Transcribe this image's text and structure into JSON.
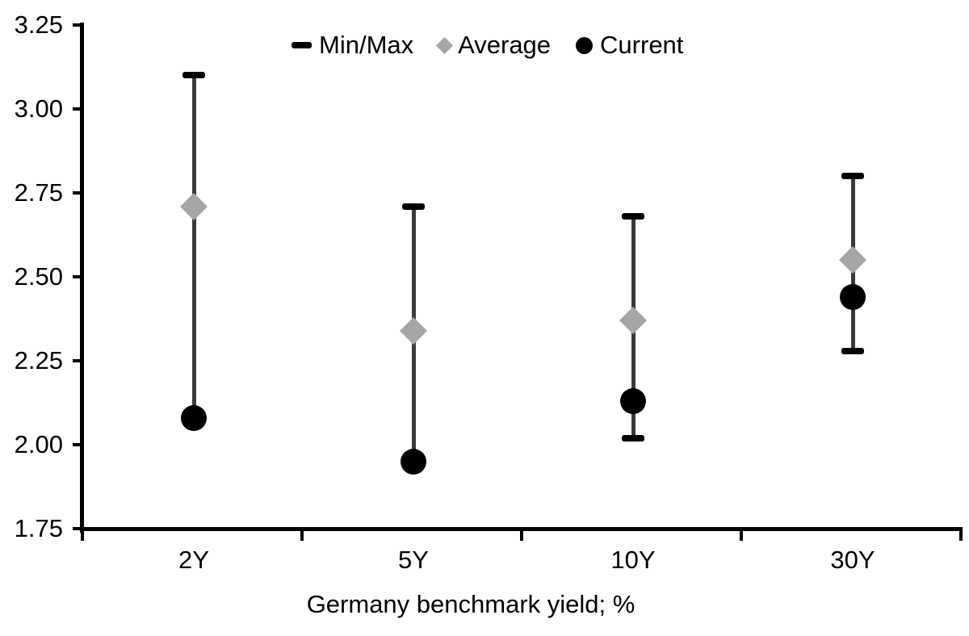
{
  "chart_data": {
    "type": "range_markers",
    "title": "",
    "xlabel": "Germany benchmark yield; %",
    "ylabel": "",
    "ylim": [
      1.75,
      3.25
    ],
    "yticks": [
      "1.75",
      "2.00",
      "2.25",
      "2.50",
      "2.75",
      "3.00",
      "3.25"
    ],
    "categories": [
      "2Y",
      "5Y",
      "10Y",
      "30Y"
    ],
    "series": [
      {
        "name": "Min/Max",
        "marker": "range-bar",
        "min": [
          2.08,
          1.95,
          2.02,
          2.28
        ],
        "max": [
          3.1,
          2.71,
          2.68,
          2.8
        ]
      },
      {
        "name": "Average",
        "marker": "diamond",
        "values": [
          2.71,
          2.34,
          2.37,
          2.55
        ]
      },
      {
        "name": "Current",
        "marker": "circle",
        "values": [
          2.08,
          1.95,
          2.13,
          2.44
        ]
      }
    ],
    "legend": [
      {
        "label": "Min/Max",
        "marker": "dash-icon"
      },
      {
        "label": "Average",
        "marker": "diamond-icon"
      },
      {
        "label": "Current",
        "marker": "circle-icon"
      }
    ],
    "legend_position": "top-center",
    "grid": false,
    "colors": {
      "background": "#ffffff",
      "axis": "#000000",
      "text": "#000000",
      "whisker": "#3a3a3a",
      "cap": "#000000",
      "average": "#a6a6a6",
      "current": "#000000"
    }
  }
}
